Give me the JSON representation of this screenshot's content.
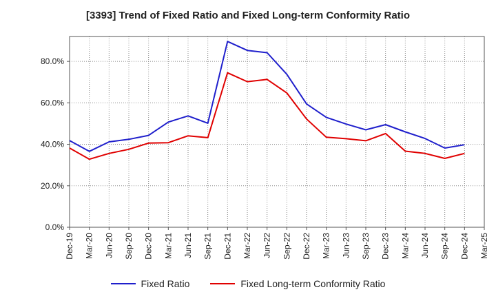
{
  "chart_data": {
    "type": "line",
    "title": "[3393]  Trend of Fixed Ratio and Fixed Long-term Conformity Ratio",
    "xlabel": "",
    "ylabel": "",
    "categories": [
      "Dec-19",
      "Mar-20",
      "Jun-20",
      "Sep-20",
      "Dec-20",
      "Mar-21",
      "Jun-21",
      "Sep-21",
      "Dec-21",
      "Mar-22",
      "Jun-22",
      "Sep-22",
      "Dec-22",
      "Mar-23",
      "Jun-23",
      "Sep-23",
      "Dec-23",
      "Mar-24",
      "Jun-24",
      "Sep-24",
      "Dec-24",
      "Mar-25"
    ],
    "y_tick_labels": [
      "0.0%",
      "20.0%",
      "40.0%",
      "60.0%",
      "80.0%"
    ],
    "y_ticks": [
      0,
      20,
      40,
      60,
      80
    ],
    "ylim": [
      0,
      92
    ],
    "grid": true,
    "legend_position": "bottom",
    "series": [
      {
        "name": "Fixed Ratio",
        "color": "#1f1fcc",
        "values": [
          41.8,
          36.6,
          41.2,
          42.4,
          44.3,
          50.7,
          53.7,
          50.2,
          89.6,
          85.3,
          84.2,
          73.8,
          59.5,
          53.0,
          49.8,
          47.0,
          49.5,
          46.0,
          42.8,
          38.2,
          39.8,
          null
        ]
      },
      {
        "name": "Fixed Long-term Conformity Ratio",
        "color": "#e00000",
        "values": [
          38.2,
          32.8,
          35.6,
          37.6,
          40.6,
          40.8,
          44.1,
          43.2,
          74.5,
          70.2,
          71.3,
          64.8,
          52.2,
          43.4,
          42.7,
          41.7,
          45.2,
          36.7,
          35.6,
          33.2,
          35.6,
          null
        ]
      }
    ]
  }
}
